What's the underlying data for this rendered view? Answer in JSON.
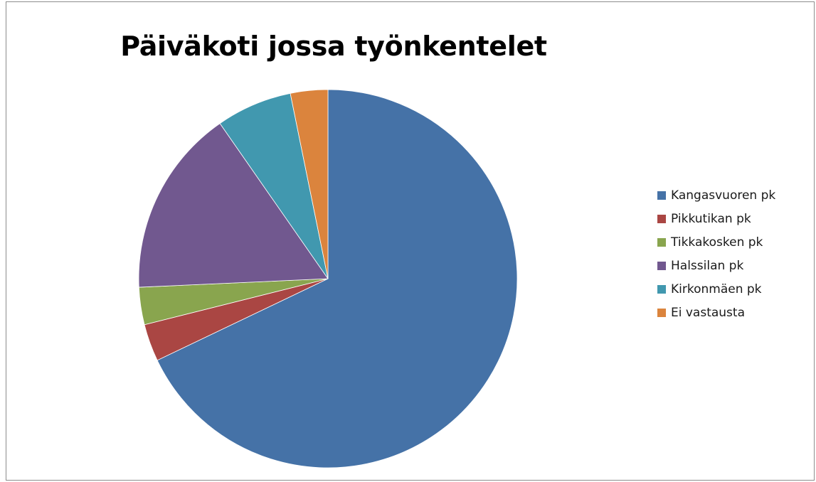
{
  "chart_data": {
    "type": "pie",
    "title": "Päiväkoti jossa työnkentelet",
    "categories": [
      "Kangasvuoren pk",
      "Pikkutikan pk",
      "Tikkakosken pk",
      "Halssilan pk",
      "Kirkonmäen pk",
      "Ei vastausta"
    ],
    "values": [
      68.1,
      3.2,
      3.2,
      16.1,
      6.5,
      3.2
    ],
    "colors": [
      "#4572a7",
      "#aa4643",
      "#89a54e",
      "#71588f",
      "#4198af",
      "#db843d"
    ],
    "start_angle_deg": 0,
    "direction": "clockwise",
    "legend_position": "right"
  }
}
